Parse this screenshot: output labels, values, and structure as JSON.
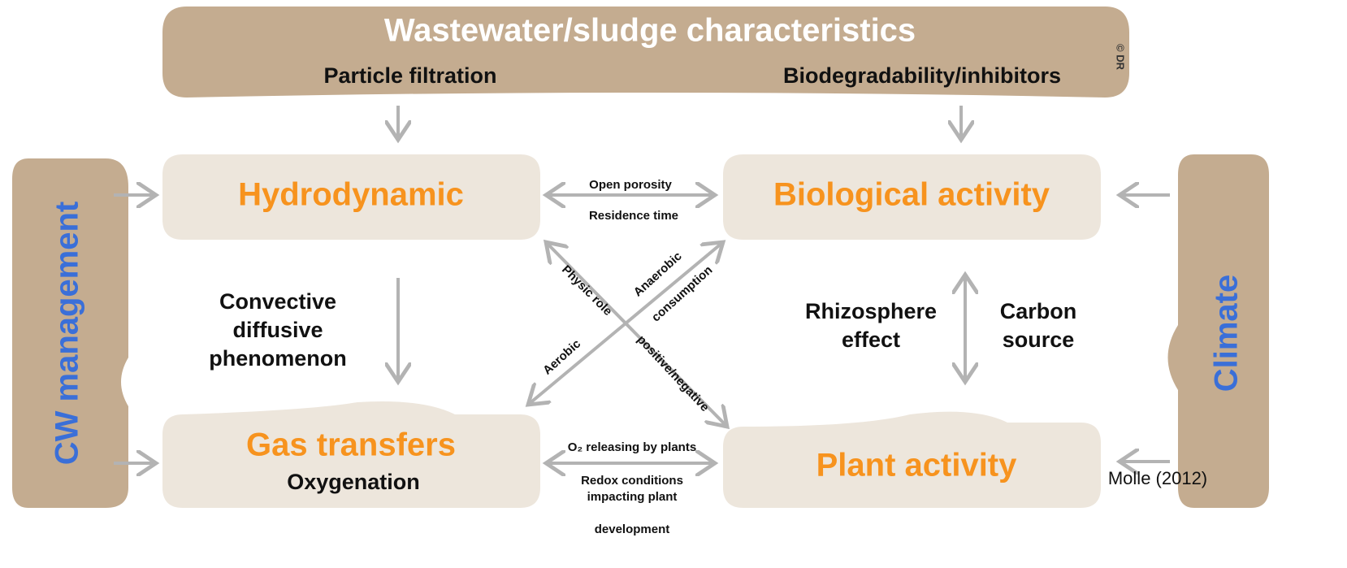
{
  "header": {
    "title": "Wastewater/sludge characteristics",
    "left": "Particle filtration",
    "right": "Biodegradability/inhibitors",
    "credit": "© DR"
  },
  "sides": {
    "left": "CW management",
    "right": "Climate"
  },
  "nodes": [
    {
      "label": "Hydrodynamic"
    },
    {
      "label": "Biological activity"
    },
    {
      "label": "Gas transfers",
      "sub": "Oxygenation"
    },
    {
      "label": "Plant activity"
    }
  ],
  "links": {
    "top": [
      "Open porosity",
      "Residence time"
    ],
    "left": [
      "Convective",
      "diffusive",
      "phenomenon"
    ],
    "right_a": [
      "Rhizosphere",
      "effect"
    ],
    "right_b": [
      "Carbon",
      "source"
    ],
    "diag_down": [
      "Physic role",
      "positive/negative"
    ],
    "diag_up": [
      "Anaerobic",
      "consumption",
      "Aerobic"
    ],
    "bottom": [
      "O₂ releasing by plants",
      "Redox conditions",
      "impacting plant",
      "development"
    ]
  },
  "citation": "Molle (2012)"
}
